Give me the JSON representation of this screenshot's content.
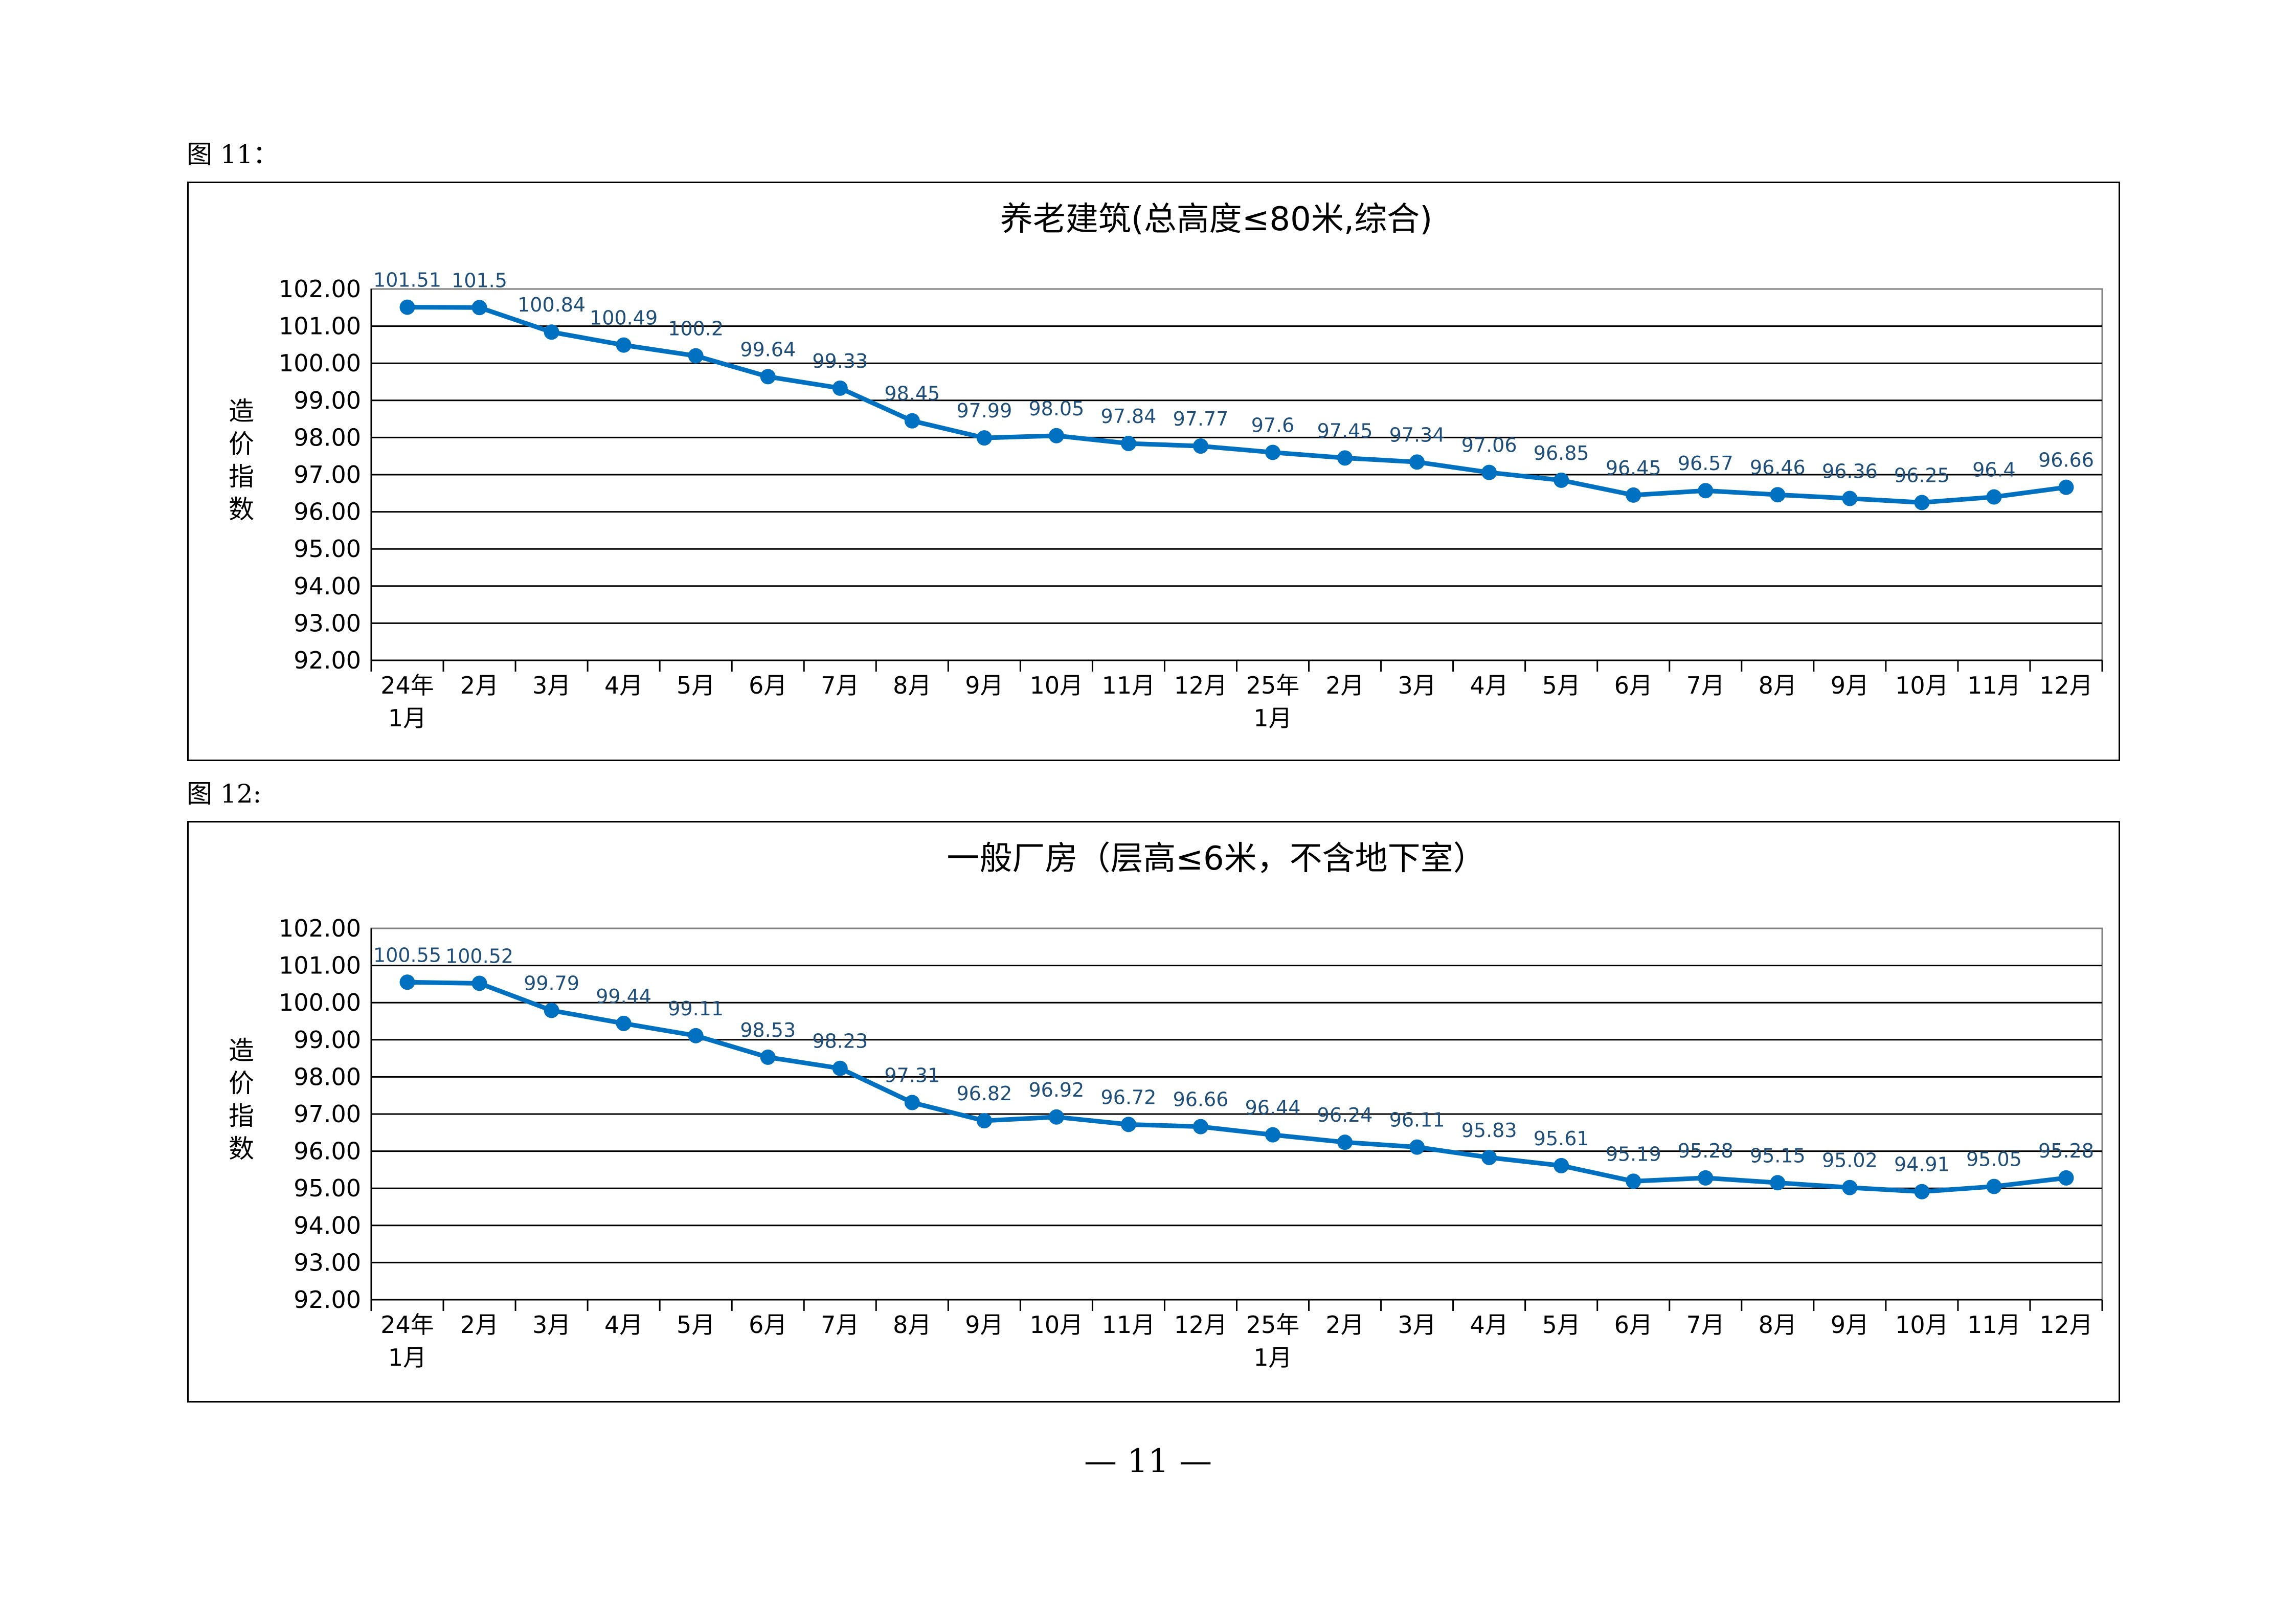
{
  "page": {
    "caption1": "图 11：",
    "caption2": "图 12:",
    "page_number": "— 11 —"
  },
  "chart_data": [
    {
      "type": "line",
      "title": "养老建筑(总高度≤80米,综合)",
      "ylabel": "造价指数",
      "xlabel": "",
      "ylim": [
        92,
        102
      ],
      "ytick_step": 1,
      "ytick_decimals": 2,
      "grid": true,
      "legend": "none",
      "categories": [
        "24年\n1月",
        "2月",
        "3月",
        "4月",
        "5月",
        "6月",
        "7月",
        "8月",
        "9月",
        "10月",
        "11月",
        "12月",
        "25年\n1月",
        "2月",
        "3月",
        "4月",
        "5月",
        "6月",
        "7月",
        "8月",
        "9月",
        "10月",
        "11月",
        "12月"
      ],
      "series": [
        {
          "color": "#0070C0",
          "values": [
            101.51,
            101.5,
            100.84,
            100.49,
            100.2,
            99.64,
            99.33,
            98.45,
            97.99,
            98.05,
            97.84,
            97.77,
            97.6,
            97.45,
            97.34,
            97.06,
            96.85,
            96.45,
            96.57,
            96.46,
            96.36,
            96.25,
            96.4,
            96.66
          ]
        }
      ],
      "label_color": "#1F4E79"
    },
    {
      "type": "line",
      "title": "一般厂房（层高≤6米，不含地下室）",
      "ylabel": "造价指数",
      "xlabel": "",
      "ylim": [
        92,
        102
      ],
      "ytick_step": 1,
      "ytick_decimals": 2,
      "grid": true,
      "legend": "none",
      "categories": [
        "24年\n1月",
        "2月",
        "3月",
        "4月",
        "5月",
        "6月",
        "7月",
        "8月",
        "9月",
        "10月",
        "11月",
        "12月",
        "25年\n1月",
        "2月",
        "3月",
        "4月",
        "5月",
        "6月",
        "7月",
        "8月",
        "9月",
        "10月",
        "11月",
        "12月"
      ],
      "series": [
        {
          "color": "#0070C0",
          "values": [
            100.55,
            100.52,
            99.79,
            99.44,
            99.11,
            98.53,
            98.23,
            97.31,
            96.82,
            96.92,
            96.72,
            96.66,
            96.44,
            96.24,
            96.11,
            95.83,
            95.61,
            95.19,
            95.28,
            95.15,
            95.02,
            94.91,
            95.05,
            95.28
          ]
        }
      ],
      "label_color": "#1F4E79"
    }
  ]
}
